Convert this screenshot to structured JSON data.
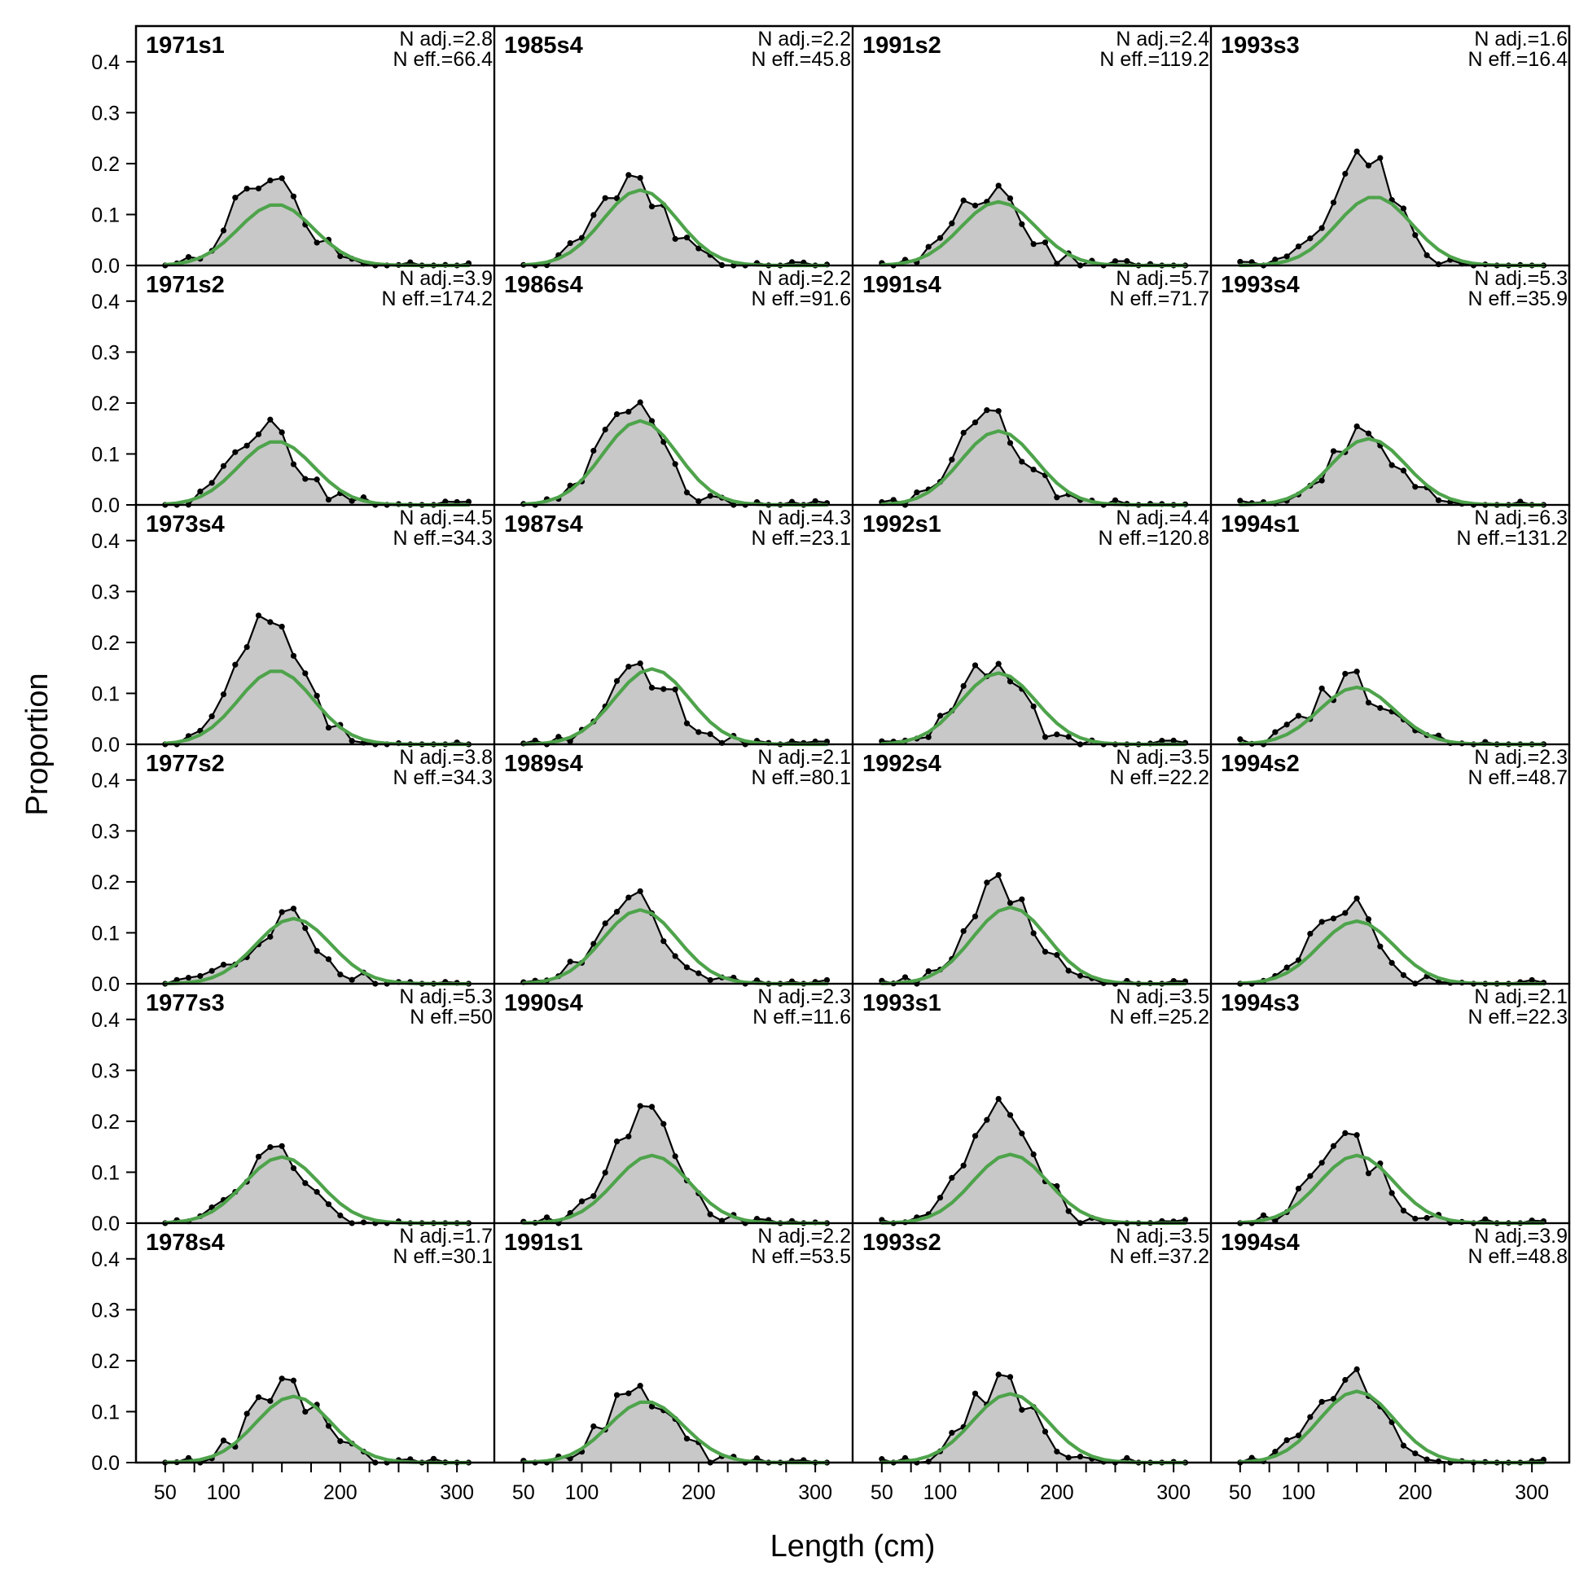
{
  "chart_data": {
    "type": "line",
    "description_free": true,
    "xlabel": "Length (cm)",
    "ylabel": "Proportion",
    "xlim": [
      25,
      332
    ],
    "ylim": [
      0,
      0.47
    ],
    "x_ticks": [
      50,
      100,
      200,
      300
    ],
    "x_minor_ticks": [
      50,
      75,
      100,
      125,
      150,
      175,
      200,
      225,
      250,
      275,
      300
    ],
    "y_ticks": [
      0.0,
      0.1,
      0.2,
      0.3,
      0.4
    ],
    "y_tick_labels": [
      "0.0",
      "0.1",
      "0.2",
      "0.3",
      "0.4"
    ],
    "grid": false,
    "layout": "6 rows x 4 columns, filled column-wise",
    "colors": {
      "observed_fill": "#c8c8c8",
      "observed_line": "#000000",
      "expected_line": "#4ea34b",
      "baseline": "#b5b5b5"
    },
    "x": [
      50,
      60,
      70,
      80,
      90,
      100,
      110,
      120,
      130,
      140,
      150,
      160,
      170,
      180,
      190,
      200,
      210,
      220,
      230,
      240,
      250,
      260,
      270,
      280,
      290,
      300,
      310
    ],
    "panels": [
      {
        "title": "1971s1",
        "n_adj": "N adj.=2.8",
        "n_eff": "N eff.=66.4",
        "peak": 145,
        "obs_scale": 0.175,
        "exp_scale": 0.12
      },
      {
        "title": "1971s2",
        "n_adj": "N adj.=3.9",
        "n_eff": "N eff.=174.2",
        "peak": 145,
        "obs_scale": 0.142,
        "exp_scale": 0.125
      },
      {
        "title": "1973s4",
        "n_adj": "N adj.=4.5",
        "n_eff": "N eff.=34.3",
        "peak": 145,
        "obs_scale": 0.24,
        "exp_scale": 0.145
      },
      {
        "title": "1977s2",
        "n_adj": "N adj.=3.8",
        "n_eff": "N eff.=34.3",
        "peak": 160,
        "obs_scale": 0.125,
        "exp_scale": 0.128
      },
      {
        "title": "1977s3",
        "n_adj": "N adj.=5.3",
        "n_eff": "N eff.=50",
        "peak": 150,
        "obs_scale": 0.14,
        "exp_scale": 0.13
      },
      {
        "title": "1978s4",
        "n_adj": "N adj.=1.7",
        "n_eff": "N eff.=30.1",
        "peak": 160,
        "obs_scale": 0.148,
        "exp_scale": 0.13
      },
      {
        "title": "1985s4",
        "n_adj": "N adj.=2.2",
        "n_eff": "N eff.=45.8",
        "peak": 150,
        "obs_scale": 0.16,
        "exp_scale": 0.148
      },
      {
        "title": "1986s4",
        "n_adj": "N adj.=2.2",
        "n_eff": "N eff.=91.6",
        "peak": 150,
        "obs_scale": 0.19,
        "exp_scale": 0.165
      },
      {
        "title": "1987s4",
        "n_adj": "N adj.=4.3",
        "n_eff": "N eff.=23.1",
        "peak": 160,
        "obs_scale": 0.14,
        "exp_scale": 0.148
      },
      {
        "title": "1989s4",
        "n_adj": "N adj.=2.1",
        "n_eff": "N eff.=80.1",
        "peak": 150,
        "obs_scale": 0.168,
        "exp_scale": 0.145
      },
      {
        "title": "1990s4",
        "n_adj": "N adj.=2.3",
        "n_eff": "N eff.=11.6",
        "peak": 160,
        "obs_scale": 0.21,
        "exp_scale": 0.133
      },
      {
        "title": "1991s1",
        "n_adj": "N adj.=2.2",
        "n_eff": "N eff.=53.5",
        "peak": 155,
        "obs_scale": 0.13,
        "exp_scale": 0.12
      },
      {
        "title": "1991s2",
        "n_adj": "N adj.=2.4",
        "n_eff": "N eff.=119.2",
        "peak": 150,
        "obs_scale": 0.14,
        "exp_scale": 0.125
      },
      {
        "title": "1991s4",
        "n_adj": "N adj.=5.7",
        "n_eff": "N eff.=71.7",
        "peak": 150,
        "obs_scale": 0.168,
        "exp_scale": 0.145
      },
      {
        "title": "1992s1",
        "n_adj": "N adj.=4.4",
        "n_eff": "N eff.=120.8",
        "peak": 150,
        "obs_scale": 0.14,
        "exp_scale": 0.14
      },
      {
        "title": "1992s4",
        "n_adj": "N adj.=3.5",
        "n_eff": "N eff.=22.2",
        "peak": 160,
        "obs_scale": 0.19,
        "exp_scale": 0.15
      },
      {
        "title": "1993s1",
        "n_adj": "N adj.=3.5",
        "n_eff": "N eff.=25.2",
        "peak": 160,
        "obs_scale": 0.22,
        "exp_scale": 0.135
      },
      {
        "title": "1993s2",
        "n_adj": "N adj.=3.5",
        "n_eff": "N eff.=37.2",
        "peak": 160,
        "obs_scale": 0.148,
        "exp_scale": 0.135
      },
      {
        "title": "1993s3",
        "n_adj": "N adj.=1.6",
        "n_eff": "N eff.=16.4",
        "peak": 165,
        "obs_scale": 0.205,
        "exp_scale": 0.135
      },
      {
        "title": "1993s4",
        "n_adj": "N adj.=5.3",
        "n_eff": "N eff.=35.9",
        "peak": 160,
        "obs_scale": 0.128,
        "exp_scale": 0.13
      },
      {
        "title": "1994s1",
        "n_adj": "N adj.=6.3",
        "n_eff": "N eff.=131.2",
        "peak": 150,
        "obs_scale": 0.12,
        "exp_scale": 0.112
      },
      {
        "title": "1994s2",
        "n_adj": "N adj.=2.3",
        "n_eff": "N eff.=48.7",
        "peak": 150,
        "obs_scale": 0.145,
        "exp_scale": 0.123
      },
      {
        "title": "1994s3",
        "n_adj": "N adj.=2.1",
        "n_eff": "N eff.=22.3",
        "peak": 150,
        "obs_scale": 0.15,
        "exp_scale": 0.133
      },
      {
        "title": "1994s4",
        "n_adj": "N adj.=3.9",
        "n_eff": "N eff.=48.8",
        "peak": 150,
        "obs_scale": 0.16,
        "exp_scale": 0.14
      }
    ]
  }
}
